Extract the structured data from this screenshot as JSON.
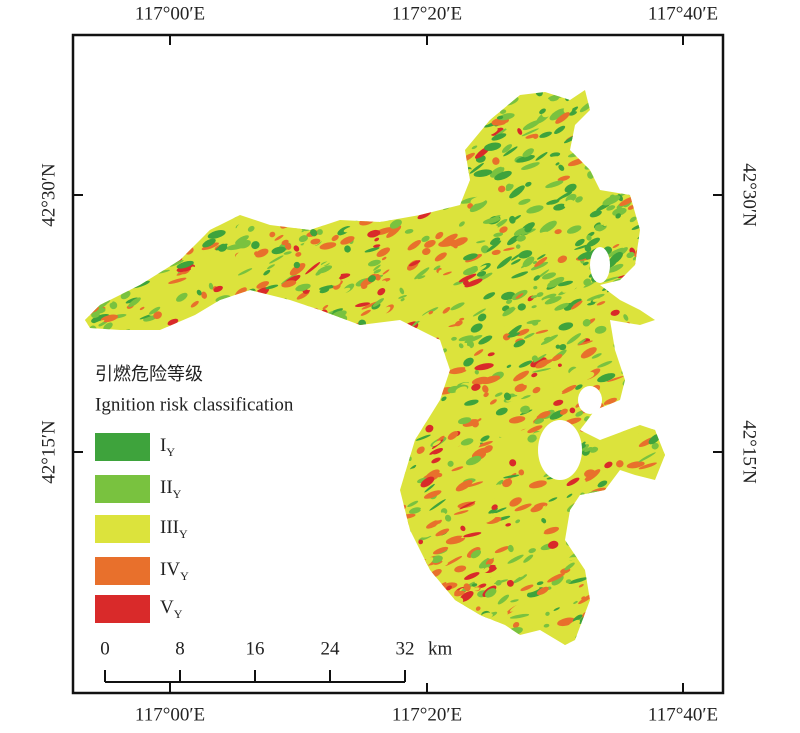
{
  "lon_labels": [
    "117°00′E",
    "117°20′E",
    "117°40′E"
  ],
  "lat_labels": [
    "42°30′N",
    "42°15′N"
  ],
  "legend": {
    "title_zh": "引燃危险等级",
    "title_en": "Ignition risk classification",
    "items": [
      {
        "label": "I",
        "subscript": "Y",
        "color": "#3ea33c"
      },
      {
        "label": "II",
        "subscript": "Y",
        "color": "#79c23f"
      },
      {
        "label": "III",
        "subscript": "Y",
        "color": "#dce33c"
      },
      {
        "label": "IV",
        "subscript": "Y",
        "color": "#e8702c"
      },
      {
        "label": "V",
        "subscript": "Y",
        "color": "#d92a2a"
      }
    ]
  },
  "scale_bar": {
    "labels": [
      0,
      8,
      16,
      24,
      32
    ],
    "unit": "km"
  }
}
